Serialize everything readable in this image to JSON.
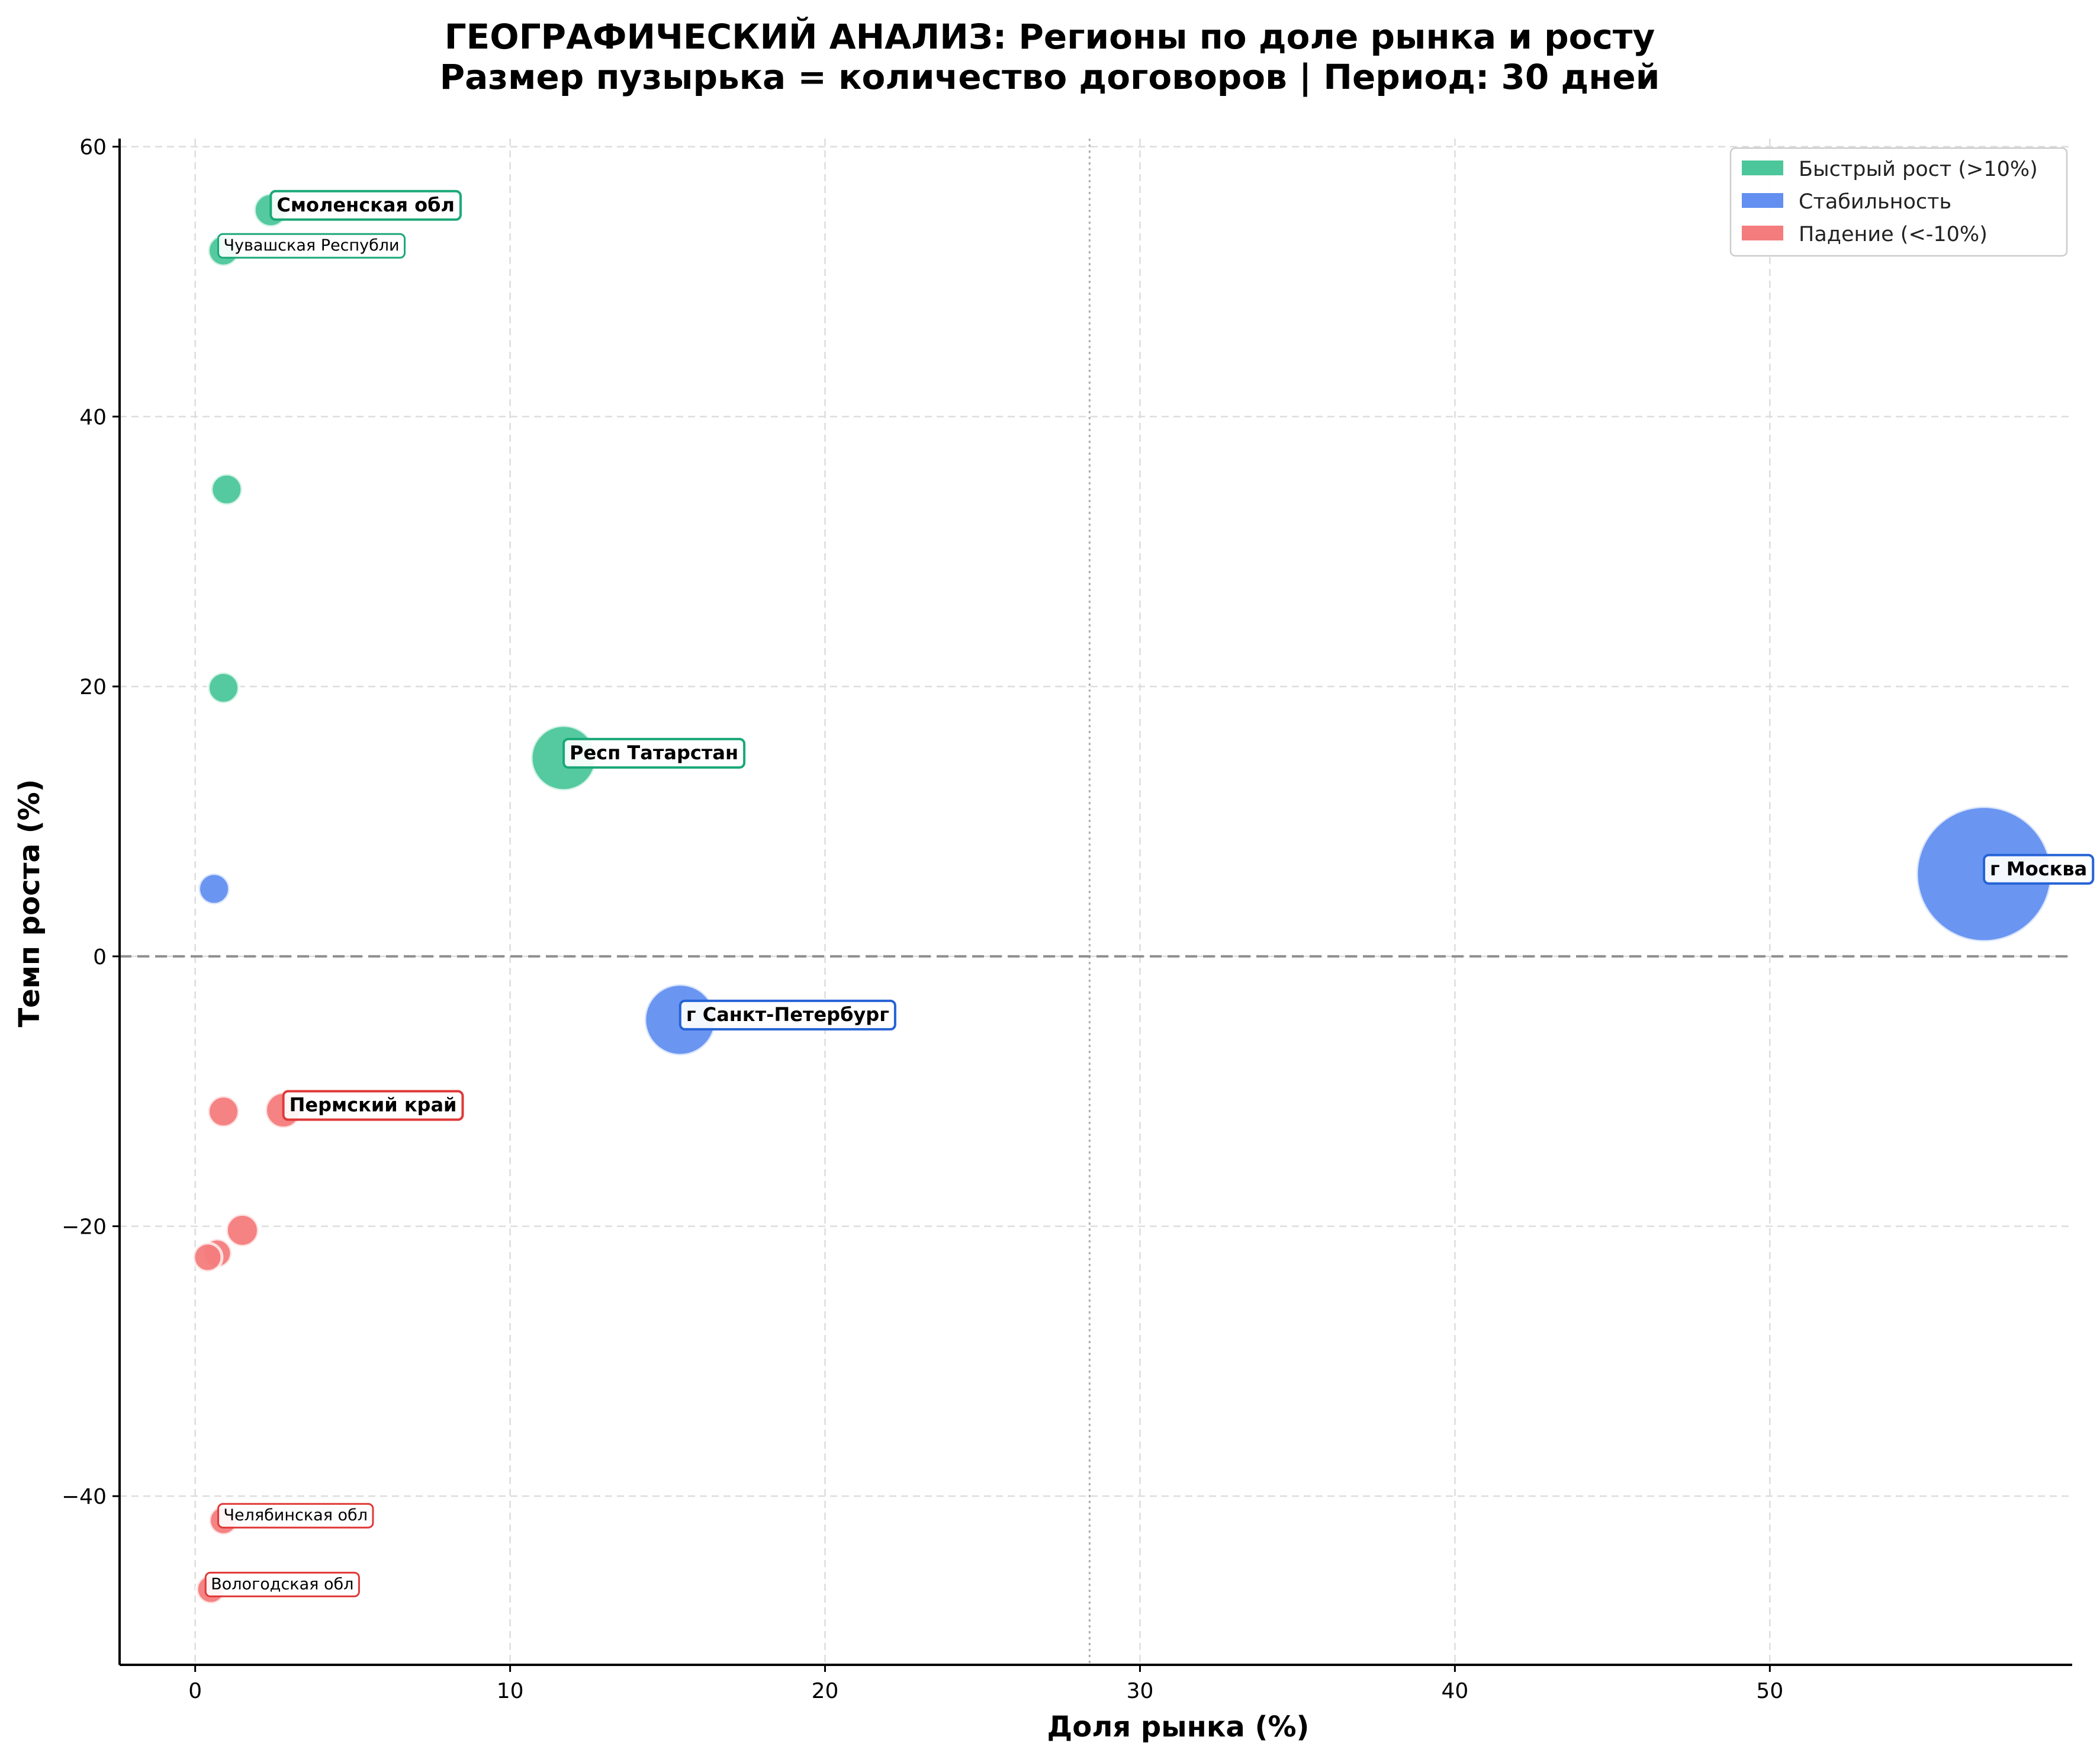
{
  "chart_data": {
    "type": "scatter",
    "title_line1": "ГЕОГРАФИЧЕСКИЙ АНАЛИЗ: Регионы по доле рынка и росту",
    "title_line2": "Размер пузырька = количество договоров | Период: 30 дней",
    "xlabel": "Доля рынка (%)",
    "ylabel": "Темп роста (%)",
    "xlim": [
      -2.4,
      59.6
    ],
    "ylim": [
      -52.5,
      60.6
    ],
    "x_ticks": [
      0,
      10,
      20,
      30,
      40,
      50
    ],
    "y_ticks": [
      -40,
      -20,
      0,
      20,
      40,
      60
    ],
    "y_tick_labels": [
      "−40",
      "−20",
      "0",
      "20",
      "40",
      "60"
    ],
    "vertical_ref_line_x": 28.4,
    "horizontal_ref_line_y": 0,
    "grid": true,
    "legend_position": "top-right",
    "colors": {
      "growth": "#4cc79b",
      "stable": "#628ff0",
      "decline": "#f47c7c",
      "growth_edge": "#1aa877",
      "stable_edge": "#2563d6",
      "decline_edge": "#e03838"
    },
    "legend": [
      {
        "key": "growth",
        "label": "Быстрый рост (>10%)"
      },
      {
        "key": "stable",
        "label": "Стабильность"
      },
      {
        "key": "decline",
        "label": "Падение (<-10%)"
      }
    ],
    "points": [
      {
        "x": 2.4,
        "y": 55.3,
        "r": 28,
        "group": "growth",
        "label": "Смоленская обл",
        "label_style": "bold"
      },
      {
        "x": 0.9,
        "y": 52.3,
        "r": 26,
        "group": "growth",
        "label": "Чувашская Республи",
        "label_style": "small"
      },
      {
        "x": 1.0,
        "y": 34.6,
        "r": 26,
        "group": "growth",
        "label": ""
      },
      {
        "x": 0.9,
        "y": 19.9,
        "r": 26,
        "group": "growth",
        "label": ""
      },
      {
        "x": 11.7,
        "y": 14.7,
        "r": 55,
        "group": "growth",
        "label": "Респ Татарстан",
        "label_style": "bold"
      },
      {
        "x": 56.8,
        "y": 6.1,
        "r": 114,
        "group": "stable",
        "label": "г Москва",
        "label_style": "bold"
      },
      {
        "x": 0.6,
        "y": 5.0,
        "r": 26,
        "group": "stable",
        "label": ""
      },
      {
        "x": 15.4,
        "y": -4.7,
        "r": 60,
        "group": "stable",
        "label": "г Санкт-Петербург",
        "label_style": "bold"
      },
      {
        "x": 0.9,
        "y": -11.5,
        "r": 26,
        "group": "decline",
        "label": ""
      },
      {
        "x": 2.8,
        "y": -11.4,
        "r": 30,
        "group": "decline",
        "label": "Пермский край",
        "label_style": "bold"
      },
      {
        "x": 1.5,
        "y": -20.3,
        "r": 27,
        "group": "decline",
        "label": ""
      },
      {
        "x": 0.7,
        "y": -22.0,
        "r": 24,
        "group": "decline",
        "label": ""
      },
      {
        "x": 0.4,
        "y": -22.3,
        "r": 24,
        "group": "decline",
        "label": ""
      },
      {
        "x": 0.9,
        "y": -41.8,
        "r": 24,
        "group": "decline",
        "label": "Челябинская обл",
        "label_style": "small"
      },
      {
        "x": 0.5,
        "y": -46.9,
        "r": 24,
        "group": "decline",
        "label": "Вологодская обл",
        "label_style": "small"
      }
    ]
  }
}
